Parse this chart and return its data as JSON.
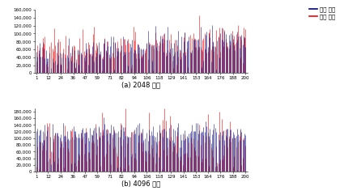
{
  "title_a": "(a) 2048 노드",
  "title_b": "(b) 4096 노드",
  "legend_proposed": "제안 기법",
  "legend_existing": "기존 기법",
  "color_proposed": "#000080",
  "color_existing": "#FF0000",
  "ylim_a": [
    0,
    160000
  ],
  "ylim_b": [
    0,
    190000
  ],
  "yticks_a": [
    0,
    20000,
    40000,
    60000,
    80000,
    100000,
    120000,
    140000,
    160000
  ],
  "yticks_b": [
    0,
    20000,
    40000,
    60000,
    80000,
    100000,
    120000,
    140000,
    160000,
    180000
  ],
  "n_points": 200,
  "background_color": "#ffffff",
  "tick_fontsize": 4.0,
  "label_fontsize": 6.0
}
